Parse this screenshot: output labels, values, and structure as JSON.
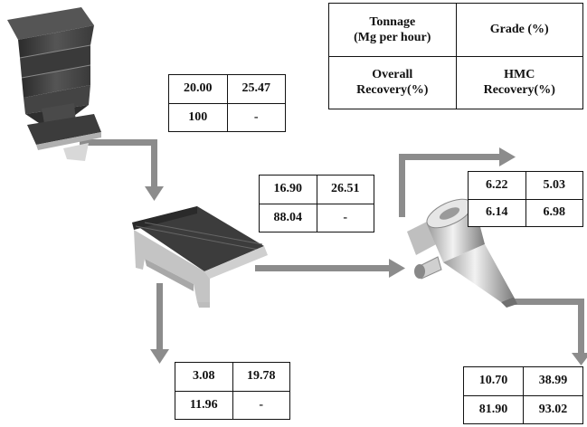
{
  "legend": {
    "tonnage": [
      "Tonnage",
      "(Mg per hour)"
    ],
    "grade": "Grade  (%)",
    "overall_recovery": [
      "Overall",
      "Recovery(%)"
    ],
    "hmc_recovery": [
      "HMC",
      "Recovery(%)"
    ]
  },
  "streams": {
    "feed": {
      "tonnage": "20.00",
      "grade": "25.47",
      "overall_recovery": "100",
      "hmc_recovery": "-"
    },
    "screen_undersize": {
      "tonnage": "16.90",
      "grade": "26.51",
      "overall_recovery": "88.04",
      "hmc_recovery": "-"
    },
    "screen_oversize": {
      "tonnage": "3.08",
      "grade": "19.78",
      "overall_recovery": "11.96",
      "hmc_recovery": "-"
    },
    "cyclone_overflow": {
      "tonnage": "6.22",
      "grade": "5.03",
      "overall_recovery": "6.14",
      "hmc_recovery": "6.98"
    },
    "cyclone_underflow": {
      "tonnage": "10.70",
      "grade": "38.99",
      "overall_recovery": "81.90",
      "hmc_recovery": "93.02"
    }
  },
  "colors": {
    "arrow": "#8c8c8c",
    "equipment_dark": "#3c3c3c",
    "equipment_light": "#c8c8c8",
    "border": "#111111"
  },
  "equipment_icons": [
    "hopper-icon",
    "vibrating-screen-icon",
    "hydrocyclone-icon"
  ]
}
